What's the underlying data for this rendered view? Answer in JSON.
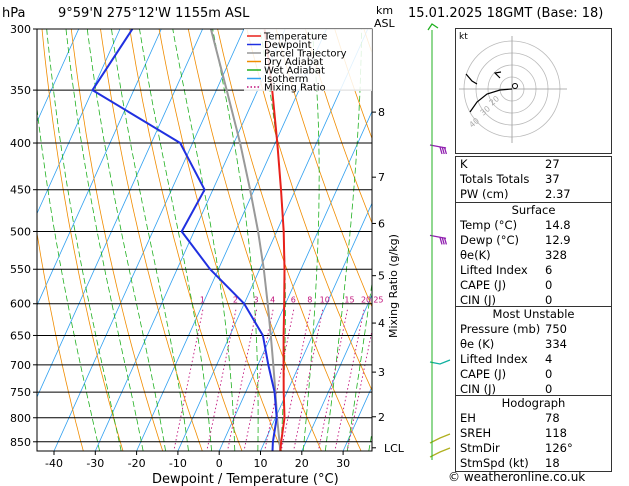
{
  "header": {
    "location": "9°59'N  275°12'W  1155m  ASL",
    "datetime": "15.01.2025  18GMT  (Base: 18)"
  },
  "chart_data": {
    "type": "skew-t",
    "ylabel_left": "hPa",
    "ylabel_right_top": "km",
    "ylabel_right_bottom": "ASL",
    "xlabel": "Dewpoint / Temperature (°C)",
    "mixing_ratio_label": "Mixing Ratio (g/kg)",
    "pressure_ticks": [
      300,
      350,
      400,
      450,
      500,
      550,
      600,
      650,
      700,
      750,
      800,
      850
    ],
    "x_ticks": [
      -40,
      -30,
      -20,
      -10,
      0,
      10,
      20,
      30
    ],
    "km_ticks": [
      {
        "label": "8",
        "p": 370
      },
      {
        "label": "7",
        "p": 436
      },
      {
        "label": "6",
        "p": 490
      },
      {
        "label": "5",
        "p": 559
      },
      {
        "label": "4",
        "p": 630
      },
      {
        "label": "3",
        "p": 713
      },
      {
        "label": "2",
        "p": 798
      }
    ],
    "lcl": {
      "label": "LCL",
      "p": 863
    },
    "mixing_ratio_values": [
      {
        "label": "1",
        "temp_at_600": -20
      },
      {
        "label": "2",
        "temp_at_600": -12
      },
      {
        "label": "3",
        "temp_at_600": -7
      },
      {
        "label": "4",
        "temp_at_600": -3
      },
      {
        "label": "6",
        "temp_at_600": 2
      },
      {
        "label": "8",
        "temp_at_600": 6
      },
      {
        "label": "10",
        "temp_at_600": 9
      },
      {
        "label": "15",
        "temp_at_600": 15
      },
      {
        "label": "20",
        "temp_at_600": 19
      },
      {
        "label": "25",
        "temp_at_600": 22
      }
    ],
    "legend": [
      {
        "name": "Temperature",
        "color": "#e8211b",
        "style": "solid"
      },
      {
        "name": "Dewpoint",
        "color": "#2030e0",
        "style": "solid"
      },
      {
        "name": "Parcel Trajectory",
        "color": "#999999",
        "style": "solid"
      },
      {
        "name": "Dry Adiabat",
        "color": "#f08c00",
        "style": "solid"
      },
      {
        "name": "Wet Adiabat",
        "color": "#20b020",
        "style": "solid"
      },
      {
        "name": "Isotherm",
        "color": "#30a0f0",
        "style": "solid"
      },
      {
        "name": "Mixing Ratio",
        "color": "#c0107a",
        "style": "dotted"
      }
    ],
    "temperature": [
      {
        "p": 870,
        "t": 14.8
      },
      {
        "p": 850,
        "t": 14.0
      },
      {
        "p": 800,
        "t": 12.2
      },
      {
        "p": 750,
        "t": 9.2
      },
      {
        "p": 700,
        "t": 6.2
      },
      {
        "p": 650,
        "t": 3.0
      },
      {
        "p": 600,
        "t": -0.3
      },
      {
        "p": 550,
        "t": -4.0
      },
      {
        "p": 500,
        "t": -8.3
      },
      {
        "p": 450,
        "t": -13.5
      },
      {
        "p": 400,
        "t": -19.5
      },
      {
        "p": 350,
        "t": -26.5
      },
      {
        "p": 300,
        "t": -35.0
      }
    ],
    "dewpoint": [
      {
        "p": 870,
        "t": 12.9
      },
      {
        "p": 850,
        "t": 12.0
      },
      {
        "p": 800,
        "t": 10.3
      },
      {
        "p": 750,
        "t": 7.0
      },
      {
        "p": 700,
        "t": 2.5
      },
      {
        "p": 650,
        "t": -2.0
      },
      {
        "p": 600,
        "t": -10.0
      },
      {
        "p": 550,
        "t": -22.0
      },
      {
        "p": 500,
        "t": -33.0
      },
      {
        "p": 450,
        "t": -32.0
      },
      {
        "p": 400,
        "t": -43.0
      },
      {
        "p": 350,
        "t": -70.0
      },
      {
        "p": 300,
        "t": -67.0
      }
    ],
    "parcel": [
      {
        "p": 870,
        "t": 14.8
      },
      {
        "p": 850,
        "t": 13.6
      },
      {
        "p": 800,
        "t": 10.4
      },
      {
        "p": 750,
        "t": 7.2
      },
      {
        "p": 700,
        "t": 3.7
      },
      {
        "p": 650,
        "t": -0.1
      },
      {
        "p": 600,
        "t": -4.3
      },
      {
        "p": 550,
        "t": -9.0
      },
      {
        "p": 500,
        "t": -14.5
      },
      {
        "p": 450,
        "t": -21.0
      },
      {
        "p": 400,
        "t": -28.5
      },
      {
        "p": 350,
        "t": -37.5
      },
      {
        "p": 300,
        "t": -48.0
      }
    ],
    "wind_barb_colors": {
      "upper": "#9020b0",
      "middle": "#10b0a0",
      "lower": "#b0b020"
    }
  },
  "hodograph": {
    "label": "kt",
    "ring_labels": [
      "20",
      "30",
      "40"
    ]
  },
  "indices": {
    "top": [
      {
        "label": "K",
        "value": "27"
      },
      {
        "label": "Totals Totals",
        "value": "37"
      },
      {
        "label": "PW (cm)",
        "value": "2.37"
      }
    ],
    "surface": {
      "title": "Surface",
      "rows": [
        {
          "label": "Temp (°C)",
          "value": "14.8"
        },
        {
          "label": "Dewp (°C)",
          "value": "12.9"
        },
        {
          "label": "θe(K)",
          "value": "328"
        },
        {
          "label": "Lifted Index",
          "value": "6"
        },
        {
          "label": "CAPE (J)",
          "value": "0"
        },
        {
          "label": "CIN (J)",
          "value": "0"
        }
      ]
    },
    "most_unstable": {
      "title": "Most Unstable",
      "rows": [
        {
          "label": "Pressure (mb)",
          "value": "750"
        },
        {
          "label": "θe (K)",
          "value": "334"
        },
        {
          "label": "Lifted Index",
          "value": "4"
        },
        {
          "label": "CAPE (J)",
          "value": "0"
        },
        {
          "label": "CIN (J)",
          "value": "0"
        }
      ]
    },
    "hodograph": {
      "title": "Hodograph",
      "rows": [
        {
          "label": "EH",
          "value": "78"
        },
        {
          "label": "SREH",
          "value": "118"
        },
        {
          "label": "StmDir",
          "value": "126°"
        },
        {
          "label": "StmSpd (kt)",
          "value": "18"
        }
      ]
    }
  },
  "footer": {
    "text": "© weatheronline.co.uk"
  }
}
